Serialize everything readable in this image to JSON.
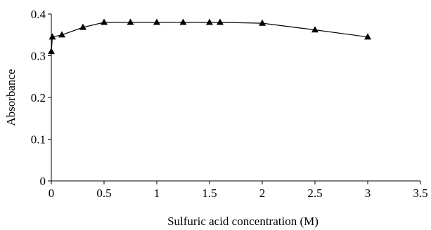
{
  "chart_data": {
    "type": "line",
    "title": "",
    "xlabel": "Sulfuric acid concentration (M)",
    "ylabel": "Absorbance",
    "xlim": [
      0,
      3.5
    ],
    "ylim": [
      0,
      0.4
    ],
    "xticks": [
      "0",
      "0.5",
      "1",
      "1.5",
      "2",
      "2.5",
      "3",
      "3.5"
    ],
    "xtick_values": [
      0,
      0.5,
      1,
      1.5,
      2,
      2.5,
      3,
      3.5
    ],
    "yticks": [
      "0",
      "0.1",
      "0.2",
      "0.3",
      "0.4"
    ],
    "ytick_values": [
      0,
      0.1,
      0.2,
      0.3,
      0.4
    ],
    "grid": false,
    "legend": "none",
    "marker": "triangle",
    "color": "#000000",
    "series": [
      {
        "x": [
          0,
          0.01,
          0.1,
          0.3,
          0.5,
          0.75,
          1,
          1.25,
          1.5,
          1.6,
          2,
          2.5,
          3
        ],
        "y": [
          0.31,
          0.345,
          0.35,
          0.368,
          0.38,
          0.38,
          0.38,
          0.38,
          0.38,
          0.38,
          0.378,
          0.362,
          0.345
        ]
      }
    ]
  }
}
